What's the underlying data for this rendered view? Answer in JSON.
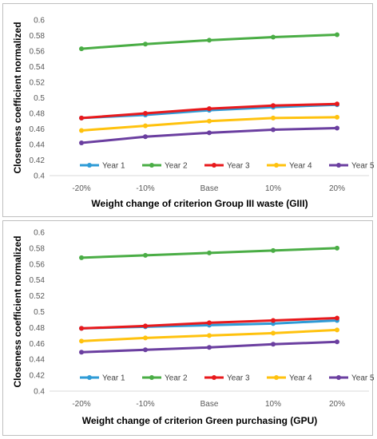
{
  "chart_data": [
    {
      "type": "line",
      "categories": [
        "-20%",
        "-10%",
        "Base",
        "10%",
        "20%"
      ],
      "series": [
        {
          "name": "Year 1",
          "color": "#2e9bd6",
          "values": [
            0.474,
            0.478,
            0.484,
            0.488,
            0.491
          ]
        },
        {
          "name": "Year 2",
          "color": "#4aad45",
          "values": [
            0.563,
            0.569,
            0.574,
            0.578,
            0.581
          ]
        },
        {
          "name": "Year 3",
          "color": "#e8191c",
          "values": [
            0.474,
            0.48,
            0.486,
            0.49,
            0.492
          ]
        },
        {
          "name": "Year 4",
          "color": "#ffc20e",
          "values": [
            0.458,
            0.464,
            0.47,
            0.474,
            0.475
          ]
        },
        {
          "name": "Year 5",
          "color": "#6b3fa0",
          "values": [
            0.442,
            0.45,
            0.455,
            0.459,
            0.461
          ]
        }
      ],
      "xlabel": "Weight change of criterion  Group III waste (GIII)",
      "ylabel": "Closeness coefficient normalized",
      "ylim": [
        0.4,
        0.6
      ],
      "yticks": [
        "0.4",
        "0.42",
        "0.44",
        "0.46",
        "0.48",
        "0.5",
        "0.52",
        "0.54",
        "0.56",
        "0.58",
        "0.6"
      ],
      "grid": false,
      "legend": "bottom"
    },
    {
      "type": "line",
      "categories": [
        "-20%",
        "-10%",
        "Base",
        "10%",
        "20%"
      ],
      "series": [
        {
          "name": "Year 1",
          "color": "#2e9bd6",
          "values": [
            0.479,
            0.481,
            0.483,
            0.485,
            0.489
          ]
        },
        {
          "name": "Year 2",
          "color": "#4aad45",
          "values": [
            0.568,
            0.571,
            0.574,
            0.577,
            0.58
          ]
        },
        {
          "name": "Year 3",
          "color": "#e8191c",
          "values": [
            0.479,
            0.482,
            0.486,
            0.489,
            0.492
          ]
        },
        {
          "name": "Year 4",
          "color": "#ffc20e",
          "values": [
            0.463,
            0.467,
            0.47,
            0.473,
            0.477
          ]
        },
        {
          "name": "Year 5",
          "color": "#6b3fa0",
          "values": [
            0.449,
            0.452,
            0.455,
            0.459,
            0.462
          ]
        }
      ],
      "xlabel": "Weight change of criterion  Green purchasing (GPU)",
      "ylabel": "Closeness coefficient normalized",
      "ylim": [
        0.4,
        0.6
      ],
      "yticks": [
        "0.4",
        "0.42",
        "0.44",
        "0.46",
        "0.48",
        "0.5",
        "0.52",
        "0.54",
        "0.56",
        "0.58",
        "0.6"
      ],
      "grid": false,
      "legend": "bottom"
    }
  ]
}
